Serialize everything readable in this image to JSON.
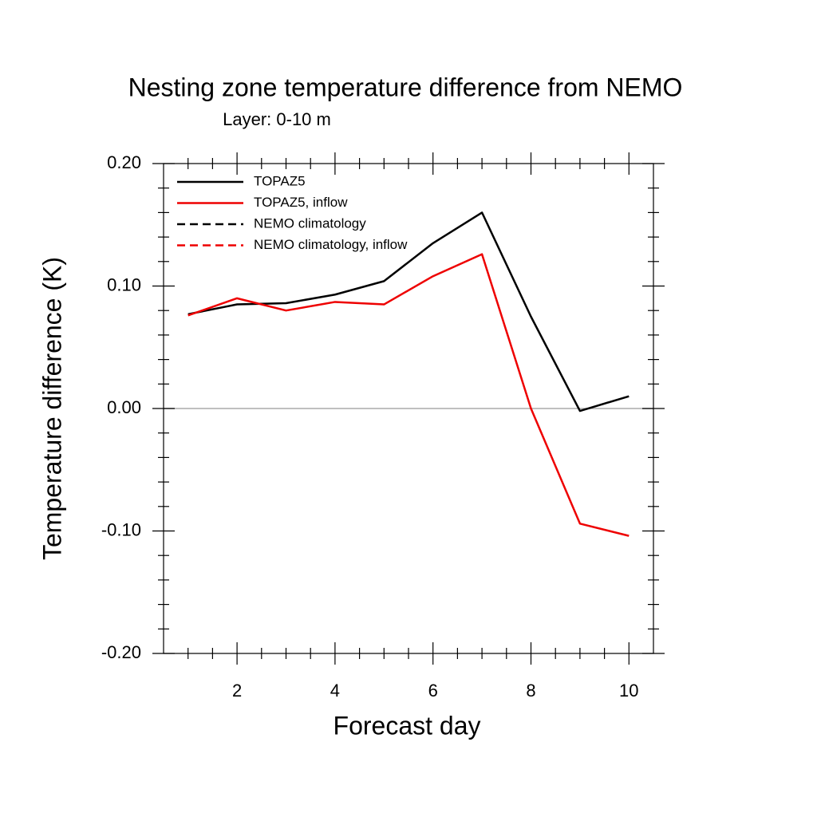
{
  "chart_data": {
    "type": "line",
    "title": "Nesting zone temperature difference from NEMO",
    "subtitle": "Layer: 0-10 m",
    "xlabel": "Forecast day",
    "ylabel": "Temperature difference (K)",
    "x": [
      1,
      2,
      3,
      4,
      5,
      6,
      7,
      8,
      9,
      10
    ],
    "series": [
      {
        "name": "TOPAZ5",
        "color": "#000000",
        "dash": false,
        "values": [
          0.077,
          0.085,
          0.086,
          0.093,
          0.104,
          0.135,
          0.16,
          0.075,
          -0.002,
          0.01
        ]
      },
      {
        "name": "TOPAZ5, inflow",
        "color": "#ee0000",
        "dash": false,
        "values": [
          0.076,
          0.09,
          0.08,
          0.087,
          0.085,
          0.108,
          0.126,
          0.0,
          -0.094,
          -0.104
        ]
      },
      {
        "name": "NEMO climatology",
        "color": "#000000",
        "dash": true,
        "values": [
          null,
          null,
          null,
          null,
          null,
          null,
          null,
          null,
          null,
          null
        ]
      },
      {
        "name": "NEMO climatology, inflow",
        "color": "#ee0000",
        "dash": true,
        "values": [
          null,
          null,
          null,
          null,
          null,
          null,
          null,
          null,
          null,
          null
        ]
      }
    ],
    "xlim": [
      0.5,
      10.5
    ],
    "xticks": [
      2,
      4,
      6,
      8,
      10
    ],
    "xminorticks": [
      1,
      1.5,
      2.5,
      3,
      3.5,
      4.5,
      5,
      5.5,
      6.5,
      7,
      7.5,
      8.5,
      9,
      9.5
    ],
    "ylim": [
      -0.2,
      0.2
    ],
    "yticks": [
      {
        "value": -0.2,
        "label": "-0.20"
      },
      {
        "value": -0.1,
        "label": "-0.10"
      },
      {
        "value": 0,
        "label": "0.00"
      },
      {
        "value": 0.1,
        "label": "0.10"
      },
      {
        "value": 0.2,
        "label": "0.20"
      }
    ],
    "yminorticks": [
      -0.18,
      -0.16,
      -0.14,
      -0.12,
      -0.08,
      -0.06,
      -0.04,
      -0.02,
      0.02,
      0.04,
      0.06,
      0.08,
      0.12,
      0.14,
      0.16,
      0.18
    ],
    "reference_line": 0,
    "legend": "upper left"
  }
}
